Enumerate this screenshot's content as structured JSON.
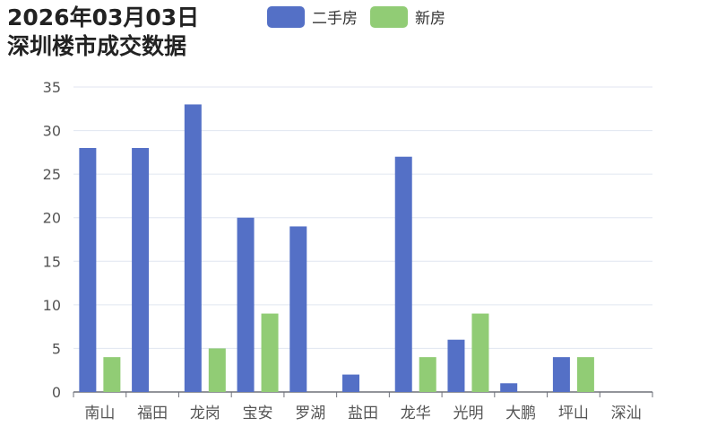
{
  "title_lines": [
    "2026年03月03日",
    "深圳楼市成交数据"
  ],
  "colors": {
    "series_0": "#5470c6",
    "series_1": "#91cc75",
    "axis": "#6e7079",
    "grid": "#e0e6f1"
  },
  "chart_data": {
    "type": "bar",
    "title": "2026年03月03日 深圳楼市成交数据",
    "categories": [
      "南山",
      "福田",
      "龙岗",
      "宝安",
      "罗湖",
      "盐田",
      "龙华",
      "光明",
      "大鹏",
      "坪山",
      "深汕"
    ],
    "series": [
      {
        "name": "二手房",
        "values": [
          28,
          28,
          33,
          20,
          19,
          2,
          27,
          6,
          1,
          4,
          0
        ]
      },
      {
        "name": "新房",
        "values": [
          4,
          0,
          5,
          9,
          0,
          0,
          4,
          9,
          0,
          4,
          0
        ]
      }
    ],
    "ylim": [
      0,
      35
    ],
    "yticks": [
      0,
      5,
      10,
      15,
      20,
      25,
      30,
      35
    ],
    "grid": true,
    "legend": "top"
  }
}
